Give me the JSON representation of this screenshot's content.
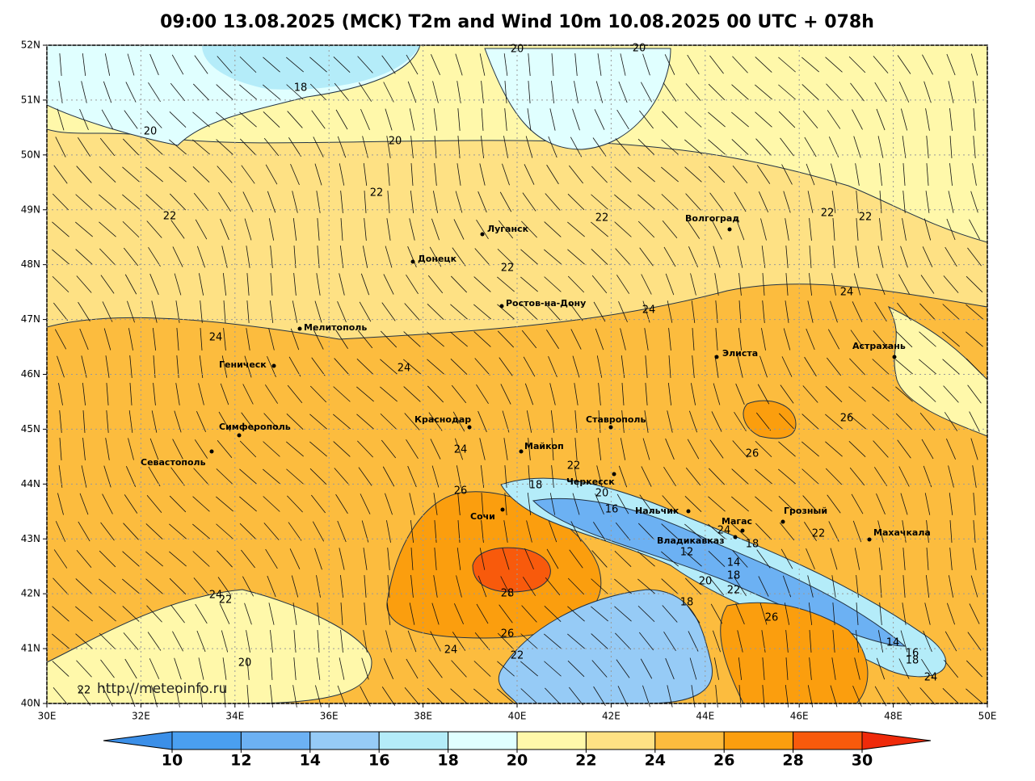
{
  "title": "09:00 13.08.2025 (MCK) T2m and Wind 10m 10.08.2025 00 UTC + 078h",
  "lat_labels": [
    "52N",
    "51N",
    "50N",
    "49N",
    "48N",
    "47N",
    "46N",
    "45N",
    "44N",
    "43N",
    "42N",
    "41N",
    "40N"
  ],
  "lon_labels": [
    "30E",
    "32E",
    "34E",
    "36E",
    "38E",
    "40E",
    "42E",
    "44E",
    "46E",
    "48E",
    "50E"
  ],
  "cities": [
    "Луганск",
    "Волгоград",
    "Донецк",
    "Ростов-на-Дону",
    "Мелитополь",
    "Элиста",
    "Астрахань",
    "Геническ",
    "Краснодар",
    "Ставрополь",
    "Симферополь",
    "Севастополь",
    "Майкоп",
    "Черкесск",
    "Сочи",
    "Нальчик",
    "Магас",
    "Грозный",
    "Владикавказ",
    "Махачкала"
  ],
  "contour_labels": [
    20,
    20,
    18,
    20,
    20,
    22,
    22,
    22,
    22,
    22,
    22,
    24,
    24,
    24,
    24,
    26,
    26,
    24,
    22,
    18,
    20,
    26,
    16,
    24,
    18,
    22,
    12,
    14,
    18,
    20,
    22,
    28,
    24,
    22,
    18,
    26,
    26,
    24,
    22,
    14,
    16,
    18,
    24,
    20,
    22
  ],
  "watermark": "http://meteoinfo.ru",
  "colorbar": {
    "ticks": [
      10,
      12,
      14,
      16,
      18,
      20,
      22,
      24,
      26,
      28,
      30
    ],
    "colors": [
      "#4a9ff0",
      "#6cb1f3",
      "#96cbf6",
      "#b4ecf9",
      "#e0ffff",
      "#fff8aa",
      "#fee184",
      "#fcbc3e",
      "#fb9e0e",
      "#f85a0c"
    ],
    "under_color": "#3b8fe8",
    "over_color": "#ef2a0a"
  }
}
